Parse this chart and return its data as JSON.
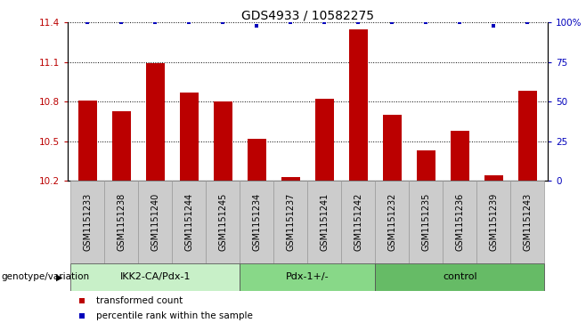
{
  "title": "GDS4933 / 10582275",
  "samples": [
    "GSM1151233",
    "GSM1151238",
    "GSM1151240",
    "GSM1151244",
    "GSM1151245",
    "GSM1151234",
    "GSM1151237",
    "GSM1151241",
    "GSM1151242",
    "GSM1151232",
    "GSM1151235",
    "GSM1151236",
    "GSM1151239",
    "GSM1151243"
  ],
  "bar_values": [
    10.81,
    10.73,
    11.09,
    10.87,
    10.8,
    10.52,
    10.23,
    10.82,
    11.35,
    10.7,
    10.43,
    10.58,
    10.24,
    10.88
  ],
  "percentile_values": [
    100,
    100,
    100,
    100,
    100,
    98,
    100,
    100,
    100,
    100,
    100,
    100,
    98,
    100
  ],
  "bar_color": "#bb0000",
  "percentile_color": "#0000bb",
  "ylim_left": [
    10.2,
    11.4
  ],
  "ylim_right": [
    0,
    100
  ],
  "yticks_left": [
    10.2,
    10.5,
    10.8,
    11.1,
    11.4
  ],
  "yticks_right": [
    0,
    25,
    50,
    75,
    100
  ],
  "ytick_right_labels": [
    "0",
    "25",
    "50",
    "75",
    "100%"
  ],
  "groups": [
    {
      "label": "IKK2-CA/Pdx-1",
      "start": 0,
      "end": 5,
      "color": "#c8f0c8"
    },
    {
      "label": "Pdx-1+/-",
      "start": 5,
      "end": 9,
      "color": "#88d888"
    },
    {
      "label": "control",
      "start": 9,
      "end": 14,
      "color": "#66bb66"
    }
  ],
  "genotype_label": "genotype/variation",
  "legend_items": [
    {
      "label": "transformed count",
      "color": "#bb0000"
    },
    {
      "label": "percentile rank within the sample",
      "color": "#0000bb"
    }
  ],
  "title_fontsize": 10,
  "tick_fontsize": 7.5,
  "label_fontsize": 8,
  "sample_fontsize": 7
}
